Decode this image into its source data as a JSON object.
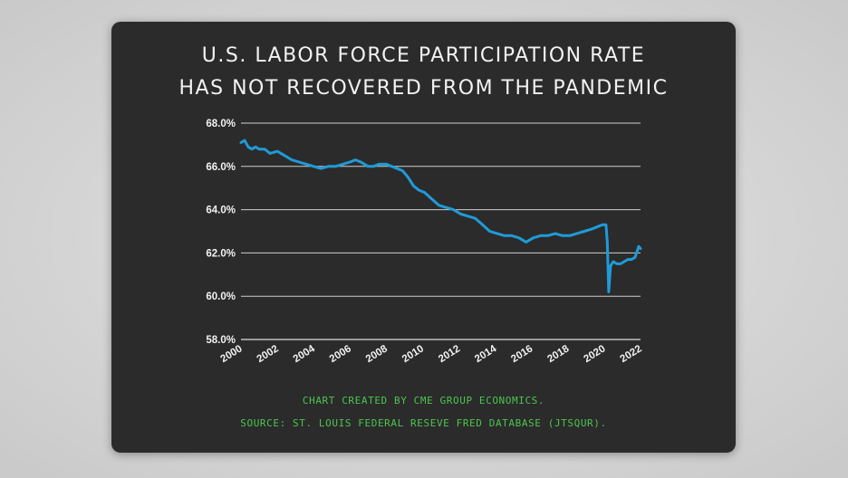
{
  "card": {
    "background": "#2b2b2b"
  },
  "title_lines": [
    "U.S. LABOR FORCE PARTICIPATION RATE",
    "HAS NOT RECOVERED FROM THE PANDEMIC"
  ],
  "footnotes": [
    "CHART CREATED BY CME GROUP ECONOMICS.",
    "SOURCE: ST. LOUIS FEDERAL RESEVE FRED DATABASE (JTSQUR)."
  ],
  "chart_data": {
    "type": "line",
    "title": "U.S. LABOR FORCE PARTICIPATION RATE HAS NOT RECOVERED FROM THE PANDEMIC",
    "xlabel": "",
    "ylabel": "",
    "xlim": [
      2000,
      2022
    ],
    "ylim": [
      58,
      68
    ],
    "grid": true,
    "legend": "none",
    "line_color": "#1f9bd8",
    "x_ticks": [
      "2000",
      "2002",
      "2004",
      "2006",
      "2008",
      "2010",
      "2012",
      "2014",
      "2016",
      "2018",
      "2020",
      "2022"
    ],
    "y_ticks": [
      "58.0%",
      "60.0%",
      "62.0%",
      "64.0%",
      "66.0%",
      "68.0%"
    ],
    "series": [
      {
        "x": [
          2000.0,
          2000.2,
          2000.4,
          2000.6,
          2000.8,
          2001.0,
          2001.3,
          2001.6,
          2002.0,
          2002.4,
          2002.8,
          2003.2,
          2003.6,
          2004.0,
          2004.4,
          2004.8,
          2005.2,
          2005.6,
          2006.0,
          2006.3,
          2006.6,
          2007.0,
          2007.3,
          2007.6,
          2008.0,
          2008.3,
          2008.6,
          2008.9,
          2009.2,
          2009.5,
          2009.8,
          2010.1,
          2010.5,
          2010.9,
          2011.3,
          2011.7,
          2012.1,
          2012.5,
          2012.9,
          2013.3,
          2013.7,
          2014.1,
          2014.5,
          2014.9,
          2015.3,
          2015.7,
          2016.1,
          2016.5,
          2016.9,
          2017.3,
          2017.7,
          2018.1,
          2018.5,
          2018.9,
          2019.3,
          2019.6,
          2019.9,
          2020.1,
          2020.17,
          2020.25,
          2020.35,
          2020.5,
          2020.7,
          2020.9,
          2021.1,
          2021.3,
          2021.5,
          2021.7,
          2021.9,
          2022.0
        ],
        "y": [
          67.1,
          67.2,
          66.9,
          66.8,
          66.9,
          66.8,
          66.8,
          66.6,
          66.7,
          66.5,
          66.3,
          66.2,
          66.1,
          66.0,
          65.9,
          66.0,
          66.0,
          66.1,
          66.2,
          66.3,
          66.2,
          66.0,
          66.0,
          66.1,
          66.1,
          66.0,
          65.9,
          65.8,
          65.5,
          65.1,
          64.9,
          64.8,
          64.5,
          64.2,
          64.1,
          64.0,
          63.8,
          63.7,
          63.6,
          63.3,
          63.0,
          62.9,
          62.8,
          62.8,
          62.7,
          62.5,
          62.7,
          62.8,
          62.8,
          62.9,
          62.8,
          62.8,
          62.9,
          63.0,
          63.1,
          63.2,
          63.3,
          63.3,
          62.5,
          60.2,
          61.4,
          61.6,
          61.5,
          61.5,
          61.6,
          61.7,
          61.7,
          61.8,
          62.3,
          62.2
        ]
      }
    ]
  }
}
